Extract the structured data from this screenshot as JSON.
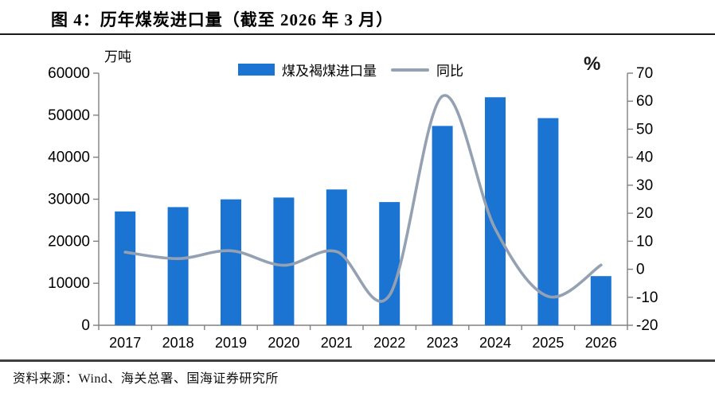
{
  "figure": {
    "title": "图 4：历年煤炭进口量（截至 2026 年 3 月）",
    "source": "资料来源：Wind、海关总署、国海证券研究所"
  },
  "chart_data": {
    "type": "combo bar+line",
    "title": "历年煤炭进口量（截至 2026 年 3 月）",
    "categories": [
      "2017",
      "2018",
      "2019",
      "2020",
      "2021",
      "2022",
      "2023",
      "2024",
      "2025",
      "2026"
    ],
    "series": [
      {
        "name": "煤及褐煤进口量",
        "type": "bar",
        "axis": "left",
        "unit": "万吨",
        "color": "#1B74D1",
        "values": [
          27090,
          28120,
          29970,
          30400,
          32320,
          29320,
          47440,
          54270,
          49300,
          11700
        ]
      },
      {
        "name": "同比",
        "type": "line",
        "axis": "right",
        "unit": "%",
        "color": "#94A1B3",
        "values": [
          6.1,
          3.8,
          6.6,
          1.4,
          6.3,
          -9.3,
          61.8,
          14.4,
          -9.7,
          1.5
        ]
      }
    ],
    "left_axis": {
      "label": "万吨",
      "min": 0,
      "max": 60000,
      "step": 10000
    },
    "right_axis": {
      "label": "%",
      "min": -20,
      "max": 70,
      "step": 10
    },
    "legend_position": "top-center",
    "grid": false,
    "axis_color": "#808080",
    "tick_label_color": "#000000"
  }
}
